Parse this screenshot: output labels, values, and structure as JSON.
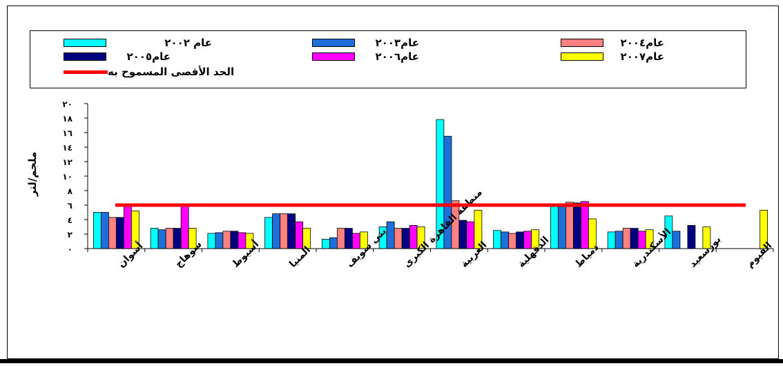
{
  "chart_data": {
    "type": "bar",
    "ylabel": "ملجم/لتر",
    "ylim": [
      0,
      20
    ],
    "yticks": [
      "٠",
      "٢",
      "٤",
      "٦",
      "٨",
      "١٠",
      "١٢",
      "١٤",
      "١٦",
      "١٨",
      "٢٠"
    ],
    "categories": [
      "أسوان",
      "سوهاج",
      "أسيوط",
      "المنيا",
      "بنى سويف",
      "منطقة القاهرة الكبرى",
      "الغربية",
      "الدقهلية",
      "دمياط",
      "الأسكندرية",
      "بورسعيد",
      "الفيوم"
    ],
    "series": [
      {
        "name": "عام ٢٠٠٢",
        "color": "#00FFFF",
        "values": [
          5.0,
          2.8,
          2.1,
          4.3,
          1.3,
          3.0,
          17.8,
          2.5,
          6.0,
          2.3,
          4.5,
          null
        ]
      },
      {
        "name": "عام٢٠٠٣",
        "color": "#1E6FD9",
        "values": [
          5.0,
          2.6,
          2.2,
          4.8,
          1.5,
          3.7,
          15.5,
          2.3,
          6.0,
          2.4,
          2.4,
          null
        ]
      },
      {
        "name": "عام٢٠٠٤",
        "color": "#FF8080",
        "values": [
          4.3,
          2.8,
          2.4,
          4.8,
          2.8,
          2.8,
          6.6,
          2.1,
          6.4,
          2.8,
          null,
          null
        ]
      },
      {
        "name": "عام٢٠٠٥",
        "color": "#000080",
        "values": [
          4.3,
          2.8,
          2.4,
          4.8,
          2.8,
          2.8,
          3.9,
          2.3,
          6.3,
          2.8,
          3.2,
          null
        ]
      },
      {
        "name": "عام٢٠٠٦",
        "color": "#FF00FF",
        "values": [
          6.0,
          6.0,
          2.2,
          3.7,
          2.1,
          3.2,
          3.7,
          2.4,
          6.5,
          2.4,
          null,
          null
        ]
      },
      {
        "name": "عام٢٠٠٧",
        "color": "#FFFF00",
        "values": [
          5.2,
          2.8,
          2.1,
          2.8,
          2.3,
          3.0,
          5.3,
          2.6,
          4.1,
          2.6,
          3.0,
          5.3
        ]
      }
    ],
    "limit": {
      "name": "الحد الأقصى المسموح به",
      "value": 6.0,
      "color": "#FF0000"
    },
    "legend_position": "top",
    "grid": false
  }
}
